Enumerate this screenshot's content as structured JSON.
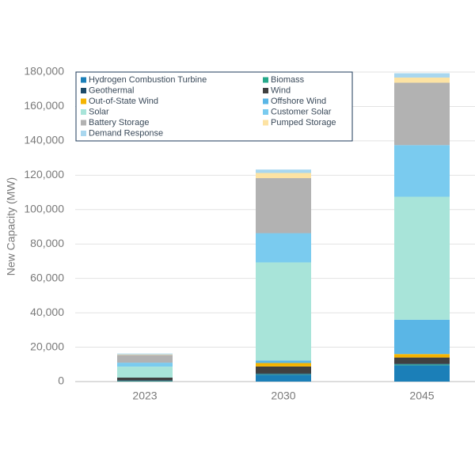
{
  "chart_data": {
    "type": "stacked-bar",
    "y_label": "New Capacity (MW)",
    "categories": [
      "2023",
      "2030",
      "2045"
    ],
    "ylim": [
      0,
      180000
    ],
    "yticks": [
      0,
      {
        "value": 20000,
        "label": "20,000"
      },
      {
        "value": 40000,
        "label": "40,000"
      },
      {
        "value": 60000,
        "label": "60,000"
      },
      {
        "value": 80000,
        "label": "80,000"
      },
      {
        "value": 100000,
        "label": "100,000"
      },
      {
        "value": 120000,
        "label": "120,000"
      },
      {
        "value": 140000,
        "label": "140,000"
      },
      {
        "value": 160000,
        "label": "160,000"
      },
      {
        "value": 180000,
        "label": "180,000"
      }
    ],
    "grid": true,
    "legend": "top-left",
    "series": [
      {
        "name": "Hydrogen Combustion Turbine",
        "color": "#1b7fb8",
        "values": [
          0,
          4000,
          9500
        ]
      },
      {
        "name": "Biomass",
        "color": "#27a98b",
        "values": [
          300,
          300,
          500
        ]
      },
      {
        "name": "Geothermal",
        "color": "#1d4a68",
        "values": [
          500,
          500,
          500
        ]
      },
      {
        "name": "Wind",
        "color": "#404040",
        "values": [
          1500,
          4000,
          3500
        ]
      },
      {
        "name": "Out-of-State Wind",
        "color": "#f5b400",
        "values": [
          0,
          2000,
          2000
        ]
      },
      {
        "name": "Offshore Wind",
        "color": "#5ab6e6",
        "values": [
          0,
          1500,
          20000
        ]
      },
      {
        "name": "Solar",
        "color": "#a8e4d9",
        "values": [
          6400,
          57000,
          71500
        ]
      },
      {
        "name": "Customer Solar",
        "color": "#7acbef",
        "values": [
          2300,
          17000,
          30000
        ]
      },
      {
        "name": "Battery Storage",
        "color": "#b2b2b2",
        "values": [
          4500,
          32000,
          36300
        ]
      },
      {
        "name": "Pumped Storage",
        "color": "#fde3a3",
        "values": [
          300,
          3000,
          3000
        ]
      },
      {
        "name": "Demand Response",
        "color": "#a9d7ef",
        "values": [
          500,
          2000,
          2500
        ]
      }
    ]
  }
}
